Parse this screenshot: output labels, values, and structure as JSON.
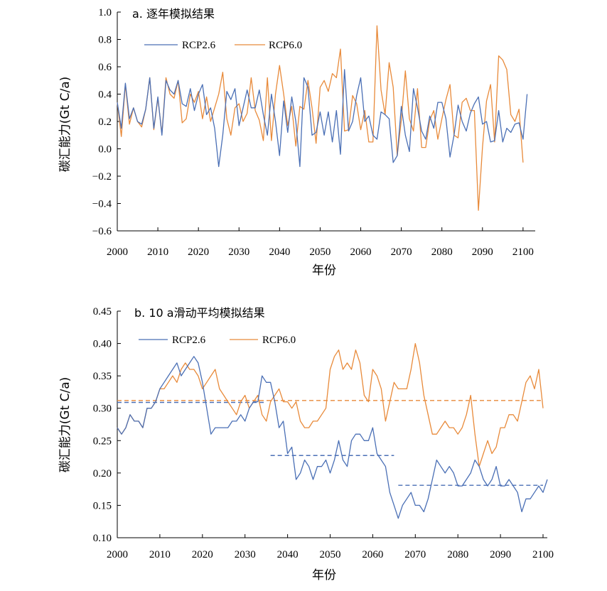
{
  "chart_data": [
    {
      "id": "a",
      "type": "line",
      "title": "a. 逐年模拟结果",
      "xlabel": "年份",
      "ylabel": "碳汇能力(Gt C/a)",
      "xlim": [
        2000,
        2103
      ],
      "ylim": [
        -0.6,
        1.0
      ],
      "yticks": [
        "−0.6",
        "−0.4",
        "−0.2",
        "0.0",
        "0.2",
        "0.4",
        "0.6",
        "0.8",
        "1.0"
      ],
      "ytick_values": [
        -0.6,
        -0.4,
        -0.2,
        0.0,
        0.2,
        0.4,
        0.6,
        0.8,
        1.0
      ],
      "xticks": [
        "2000",
        "2010",
        "2020",
        "2030",
        "2040",
        "2050",
        "2060",
        "2070",
        "2080",
        "2090",
        "2100"
      ],
      "xtick_values": [
        2000,
        2010,
        2020,
        2030,
        2040,
        2050,
        2060,
        2070,
        2080,
        2090,
        2100
      ],
      "grid": false,
      "legend_position": "top-left",
      "x_start": 2000,
      "series": [
        {
          "name": "RCP2.6",
          "color": "#4a6fb5",
          "values": [
            0.34,
            0.15,
            0.48,
            0.22,
            0.3,
            0.2,
            0.18,
            0.29,
            0.52,
            0.15,
            0.38,
            0.1,
            0.5,
            0.43,
            0.4,
            0.5,
            0.33,
            0.31,
            0.44,
            0.28,
            0.4,
            0.47,
            0.25,
            0.3,
            0.15,
            -0.13,
            0.1,
            0.42,
            0.36,
            0.44,
            0.17,
            0.3,
            0.43,
            0.3,
            0.3,
            0.43,
            0.25,
            0.1,
            0.4,
            0.2,
            -0.05,
            0.35,
            0.12,
            0.38,
            0.2,
            -0.13,
            0.52,
            0.45,
            0.1,
            0.12,
            0.27,
            0.1,
            0.27,
            0.05,
            0.28,
            -0.04,
            0.58,
            0.13,
            0.2,
            0.39,
            0.52,
            0.2,
            0.24,
            0.1,
            0.07,
            0.27,
            0.25,
            0.22,
            -0.1,
            -0.05,
            0.31,
            0.1,
            -0.02,
            0.44,
            0.3,
            0.13,
            0.07,
            0.24,
            0.15,
            0.34,
            0.34,
            0.22,
            -0.06,
            0.1,
            0.32,
            0.2,
            0.13,
            0.26,
            0.33,
            0.38,
            0.18,
            0.2,
            0.05,
            0.06,
            0.28,
            0.05,
            0.15,
            0.12,
            0.18,
            0.19,
            0.07,
            0.4
          ]
        },
        {
          "name": "RCP6.0",
          "color": "#e88a3a",
          "values": [
            0.34,
            0.09,
            0.47,
            0.18,
            0.3,
            0.2,
            0.16,
            0.29,
            0.52,
            0.14,
            0.37,
            0.11,
            0.52,
            0.4,
            0.37,
            0.5,
            0.19,
            0.22,
            0.4,
            0.34,
            0.42,
            0.22,
            0.38,
            0.2,
            0.3,
            0.4,
            0.56,
            0.22,
            0.1,
            0.3,
            0.33,
            0.2,
            0.26,
            0.52,
            0.28,
            0.21,
            0.06,
            0.52,
            0.06,
            0.4,
            0.61,
            0.4,
            0.17,
            0.31,
            0.02,
            0.31,
            0.29,
            0.5,
            0.3,
            0.04,
            0.45,
            0.5,
            0.42,
            0.55,
            0.52,
            0.73,
            0.13,
            0.14,
            0.39,
            0.33,
            0.14,
            0.28,
            0.05,
            0.05,
            0.9,
            0.43,
            0.25,
            0.63,
            0.45,
            -0.05,
            0.21,
            0.57,
            0.22,
            0.13,
            0.44,
            0.01,
            0.01,
            0.21,
            0.28,
            0.07,
            0.22,
            0.36,
            0.47,
            0.1,
            0.08,
            0.34,
            0.37,
            0.28,
            0.28,
            -0.45,
            0.01,
            0.35,
            0.47,
            0.05,
            0.68,
            0.65,
            0.58,
            0.25,
            0.2,
            0.29,
            -0.1
          ]
        }
      ]
    },
    {
      "id": "b",
      "type": "line",
      "title": "b. 10 a滑动平均模拟结果",
      "xlabel": "年份",
      "ylabel": "碳汇能力(Gt C/a)",
      "xlim": [
        2000,
        2101
      ],
      "ylim": [
        0.1,
        0.45
      ],
      "yticks": [
        "0.10",
        "0.15",
        "0.20",
        "0.25",
        "0.30",
        "0.35",
        "0.40",
        "0.45"
      ],
      "ytick_values": [
        0.1,
        0.15,
        0.2,
        0.25,
        0.3,
        0.35,
        0.4,
        0.45
      ],
      "xticks": [
        "2000",
        "2010",
        "2020",
        "2030",
        "2040",
        "2050",
        "2060",
        "2070",
        "2080",
        "2090",
        "2100"
      ],
      "xtick_values": [
        2000,
        2010,
        2020,
        2030,
        2040,
        2050,
        2060,
        2070,
        2080,
        2090,
        2100
      ],
      "grid": false,
      "legend_position": "top-center",
      "x_start": 2000,
      "series": [
        {
          "name": "RCP2.6",
          "color": "#4a6fb5",
          "values": [
            0.27,
            0.26,
            0.27,
            0.29,
            0.28,
            0.28,
            0.27,
            0.3,
            0.3,
            0.31,
            0.33,
            0.34,
            0.35,
            0.36,
            0.37,
            0.35,
            0.36,
            0.37,
            0.38,
            0.37,
            0.34,
            0.3,
            0.26,
            0.27,
            0.27,
            0.27,
            0.27,
            0.28,
            0.28,
            0.29,
            0.28,
            0.3,
            0.31,
            0.31,
            0.35,
            0.34,
            0.34,
            0.31,
            0.27,
            0.28,
            0.23,
            0.24,
            0.19,
            0.2,
            0.22,
            0.21,
            0.19,
            0.21,
            0.21,
            0.22,
            0.2,
            0.22,
            0.25,
            0.22,
            0.21,
            0.25,
            0.26,
            0.26,
            0.25,
            0.25,
            0.27,
            0.23,
            0.22,
            0.21,
            0.17,
            0.15,
            0.13,
            0.15,
            0.16,
            0.17,
            0.15,
            0.15,
            0.14,
            0.16,
            0.19,
            0.22,
            0.21,
            0.2,
            0.21,
            0.2,
            0.18,
            0.18,
            0.19,
            0.2,
            0.22,
            0.21,
            0.19,
            0.18,
            0.19,
            0.21,
            0.18,
            0.18,
            0.19,
            0.18,
            0.17,
            0.14,
            0.16,
            0.16,
            0.17,
            0.18,
            0.17,
            0.19
          ]
        },
        {
          "name": "RCP6.0",
          "color": "#e88a3a",
          "values": [
            0.27,
            0.26,
            0.27,
            0.29,
            0.28,
            0.28,
            0.27,
            0.3,
            0.3,
            0.31,
            0.33,
            0.33,
            0.34,
            0.35,
            0.34,
            0.36,
            0.37,
            0.36,
            0.36,
            0.35,
            0.33,
            0.34,
            0.35,
            0.36,
            0.33,
            0.32,
            0.31,
            0.3,
            0.29,
            0.31,
            0.32,
            0.3,
            0.31,
            0.32,
            0.29,
            0.28,
            0.31,
            0.32,
            0.33,
            0.31,
            0.31,
            0.3,
            0.31,
            0.28,
            0.27,
            0.27,
            0.28,
            0.28,
            0.29,
            0.3,
            0.36,
            0.38,
            0.39,
            0.36,
            0.37,
            0.36,
            0.39,
            0.37,
            0.32,
            0.31,
            0.36,
            0.35,
            0.33,
            0.28,
            0.31,
            0.34,
            0.33,
            0.33,
            0.33,
            0.36,
            0.4,
            0.37,
            0.32,
            0.29,
            0.26,
            0.26,
            0.27,
            0.28,
            0.27,
            0.27,
            0.26,
            0.27,
            0.29,
            0.32,
            0.26,
            0.21,
            0.23,
            0.25,
            0.23,
            0.24,
            0.27,
            0.27,
            0.29,
            0.29,
            0.28,
            0.31,
            0.34,
            0.35,
            0.33,
            0.36,
            0.3
          ]
        }
      ],
      "reference_lines": [
        {
          "series": "RCP2.6",
          "value": 0.309,
          "x_from": 2000,
          "x_to": 2035
        },
        {
          "series": "RCP2.6",
          "value": 0.227,
          "x_from": 2036,
          "x_to": 2065
        },
        {
          "series": "RCP2.6",
          "value": 0.181,
          "x_from": 2066,
          "x_to": 2100
        },
        {
          "series": "RCP6.0",
          "value": 0.312,
          "x_from": 2000,
          "x_to": 2100
        }
      ]
    }
  ]
}
